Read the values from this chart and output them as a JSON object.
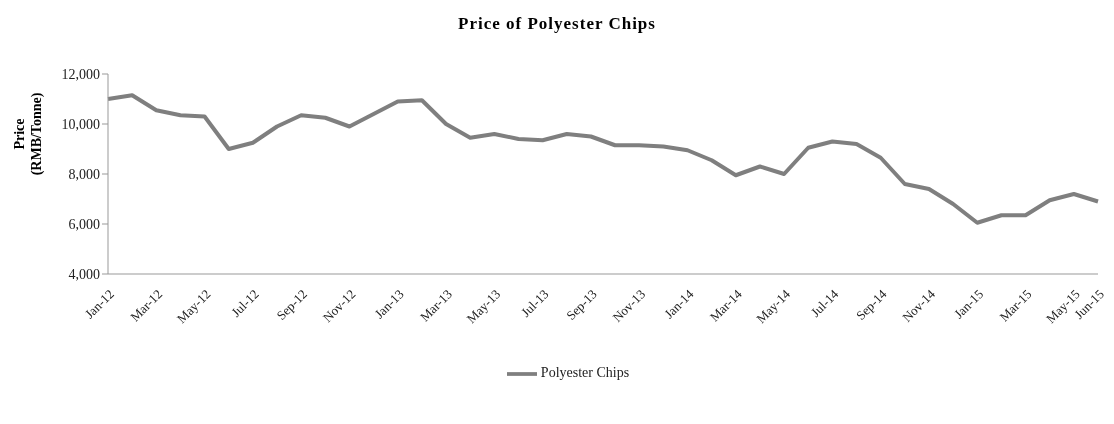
{
  "chart_data": {
    "type": "line",
    "title": "Price of Polyester Chips",
    "ylabel": "Price\n(RMB/Tonne)",
    "categories": [
      "Jan-12",
      null,
      "Mar-12",
      null,
      "May-12",
      null,
      "Jul-12",
      null,
      "Sep-12",
      null,
      "Nov-12",
      null,
      "Jan-13",
      null,
      "Mar-13",
      null,
      "May-13",
      null,
      "Jul-13",
      null,
      "Sep-13",
      null,
      "Nov-13",
      null,
      "Jan-14",
      null,
      "Mar-14",
      null,
      "May-14",
      null,
      "Jul-14",
      null,
      "Sep-14",
      null,
      "Nov-14",
      null,
      "Jan-15",
      null,
      "Mar-15",
      null,
      "May-15",
      "Jun-15"
    ],
    "series": [
      {
        "name": "Polyester Chips",
        "color": "#7f7f7f",
        "values": [
          11000,
          11150,
          10550,
          10350,
          10300,
          9000,
          9250,
          9900,
          10350,
          10250,
          9900,
          10400,
          10900,
          10950,
          10000,
          9450,
          9600,
          9400,
          9350,
          9600,
          9500,
          9150,
          9150,
          9100,
          8950,
          8550,
          7950,
          8300,
          8000,
          9050,
          9300,
          9200,
          8650,
          7600,
          7400,
          6800,
          6050,
          6350,
          6350,
          6950,
          7200,
          6900
        ]
      }
    ],
    "ylim": [
      4000,
      12000
    ],
    "yticks": [
      {
        "value": 4000,
        "label": "4,000"
      },
      {
        "value": 6000,
        "label": "6,000"
      },
      {
        "value": 8000,
        "label": "8,000"
      },
      {
        "value": 10000,
        "label": "10,000"
      },
      {
        "value": 12000,
        "label": "12,000"
      }
    ],
    "grid": false,
    "legend": "bottom",
    "marker": "none",
    "line_style": "solid"
  }
}
